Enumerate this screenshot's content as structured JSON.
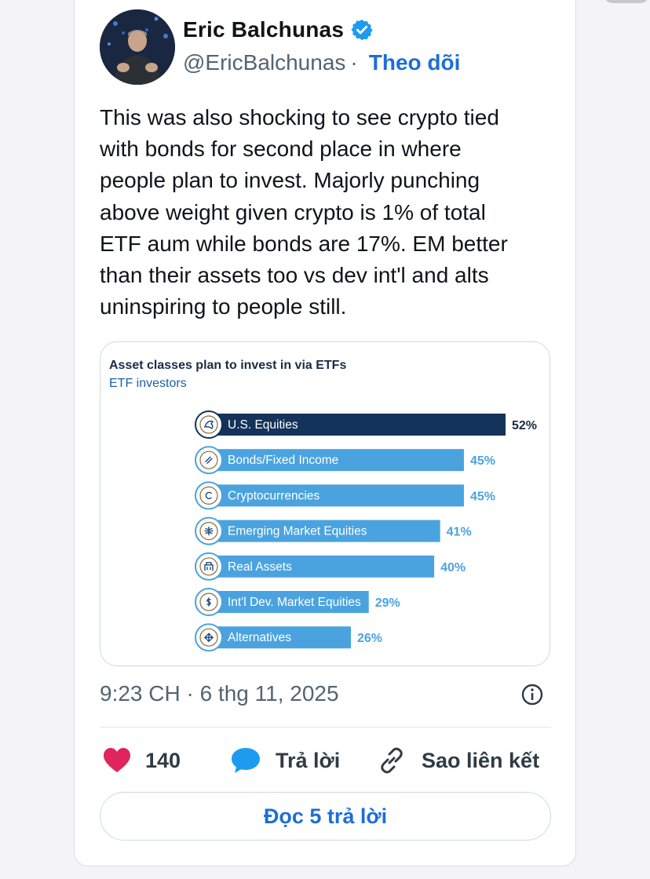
{
  "author": {
    "name": "Eric Balchunas",
    "handle": "@EricBalchunas",
    "separator": "·",
    "follow_label": "Theo dõi"
  },
  "tweet": {
    "lines": [
      "This was also shocking to see crypto tied",
      "with bonds for second place in where",
      "people plan to invest. Majorly punching",
      "above weight given crypto is 1% of total",
      "ETF aum while bonds are 17%. EM better",
      "than their assets too vs dev int'l and alts",
      "uninspiring to people still."
    ],
    "timestamp": "9:23 CH · 6 thg 11, 2025"
  },
  "actions": {
    "likes": "140",
    "reply_label": "Trả lời",
    "copy_link_label": "Sao liên kết",
    "read_replies_label": "Đọc 5 trả lời"
  },
  "colors": {
    "like": "#e0245e",
    "reply": "#1d9bf0",
    "link": "#1d6ed8",
    "bar_top": "#14335a",
    "bar": "#4aa3df"
  },
  "chart_data": {
    "type": "bar",
    "orientation": "horizontal",
    "title": "Asset classes plan to invest in via ETFs",
    "subtitle": "ETF investors",
    "categories": [
      "U.S. Equities",
      "Bonds/Fixed Income",
      "Cryptocurrencies",
      "Emerging Market Equities",
      "Real Assets",
      "Int'l Dev. Market Equities",
      "Alternatives"
    ],
    "values": [
      52,
      45,
      45,
      41,
      40,
      29,
      26
    ],
    "value_labels": [
      "52%",
      "45%",
      "45%",
      "41%",
      "40%",
      "29%",
      "26%"
    ],
    "icons": [
      "eagle-icon",
      "link-icon",
      "coin-icon",
      "globe-icon",
      "building-icon",
      "dollar-coin-icon",
      "arrows-icon"
    ],
    "grid": false
  }
}
